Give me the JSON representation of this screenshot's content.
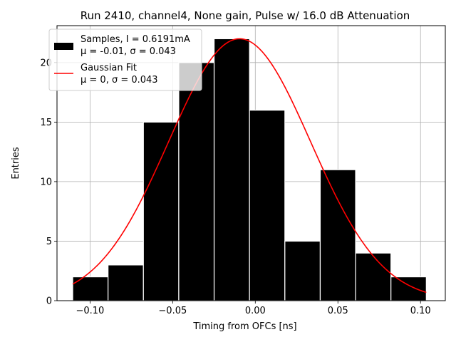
{
  "chart_data": {
    "type": "bar",
    "title": "Run 2410, channel4, None gain, Pulse w/ 16.0 dB Attenuation",
    "xlabel": "Timing from OFCs [ns]",
    "ylabel": "Entries",
    "xlim": [
      -0.12,
      0.115
    ],
    "ylim": [
      0,
      23.1
    ],
    "grid": true,
    "x_ticks": [
      -0.1,
      -0.05,
      0.0,
      0.05,
      0.1
    ],
    "x_tick_labels": [
      "−0.10",
      "−0.05",
      "0.00",
      "0.05",
      "0.10"
    ],
    "y_ticks": [
      0,
      5,
      10,
      15,
      20
    ],
    "y_tick_labels": [
      "0",
      "5",
      "10",
      "15",
      "20"
    ],
    "histogram": {
      "name": "Samples, I = 0.6191mA",
      "stats": "μ = -0.01, σ = 0.043",
      "color": "#000000",
      "bin_edges": [
        -0.1105,
        -0.0891,
        -0.0677,
        -0.0463,
        -0.0249,
        -0.0035,
        0.0179,
        0.0393,
        0.0607,
        0.0821,
        0.1035
      ],
      "counts": [
        2,
        3,
        15,
        20,
        22,
        16,
        5,
        11,
        4,
        2
      ]
    },
    "fit": {
      "name": "Gaussian Fit",
      "stats": "μ = 0, σ = 0.043",
      "color": "#ff0000",
      "amplitude": 22,
      "mean": -0.0095,
      "sigma": 0.043,
      "x_range": [
        -0.1105,
        0.1035
      ]
    },
    "legend_position": "upper-left"
  }
}
